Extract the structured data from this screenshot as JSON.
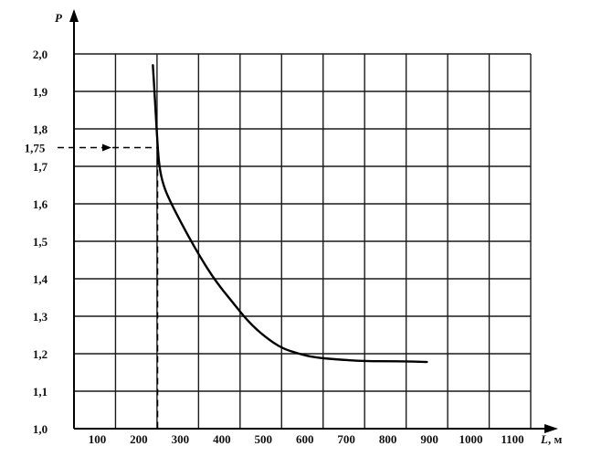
{
  "chart_data": {
    "type": "line",
    "title": "",
    "xlabel": "L",
    "xunit": ", м",
    "ylabel": "P",
    "xlim": [
      0,
      1100
    ],
    "ylim": [
      1.0,
      2.0
    ],
    "x_ticks": [
      100,
      200,
      300,
      400,
      500,
      600,
      700,
      800,
      900,
      1000,
      1100
    ],
    "x_tick_labels": [
      "100",
      "200",
      "300",
      "400",
      "500",
      "600",
      "700",
      "800",
      "900",
      "1000",
      "1100"
    ],
    "y_ticks": [
      1.0,
      1.1,
      1.2,
      1.3,
      1.4,
      1.5,
      1.6,
      1.7,
      1.8,
      1.9,
      2.0
    ],
    "y_tick_labels": [
      "1,0",
      "1,1",
      "1,2",
      "1,3",
      "1,4",
      "1,5",
      "1,6",
      "1,7",
      "1,8",
      "1,9",
      "2,0"
    ],
    "grid": true,
    "series": [
      {
        "x": [
          190,
          195,
          200,
          205,
          215,
          230,
          260,
          300,
          340,
          380,
          420,
          460,
          500,
          540,
          580,
          630,
          700,
          780,
          850
        ],
        "y": [
          1.97,
          1.88,
          1.78,
          1.7,
          1.65,
          1.61,
          1.545,
          1.465,
          1.395,
          1.34,
          1.285,
          1.245,
          1.215,
          1.2,
          1.19,
          1.185,
          1.18,
          1.18,
          1.178
        ]
      }
    ],
    "annotations": [
      {
        "label": "1,75",
        "x": 210,
        "y": 1.75
      }
    ]
  }
}
